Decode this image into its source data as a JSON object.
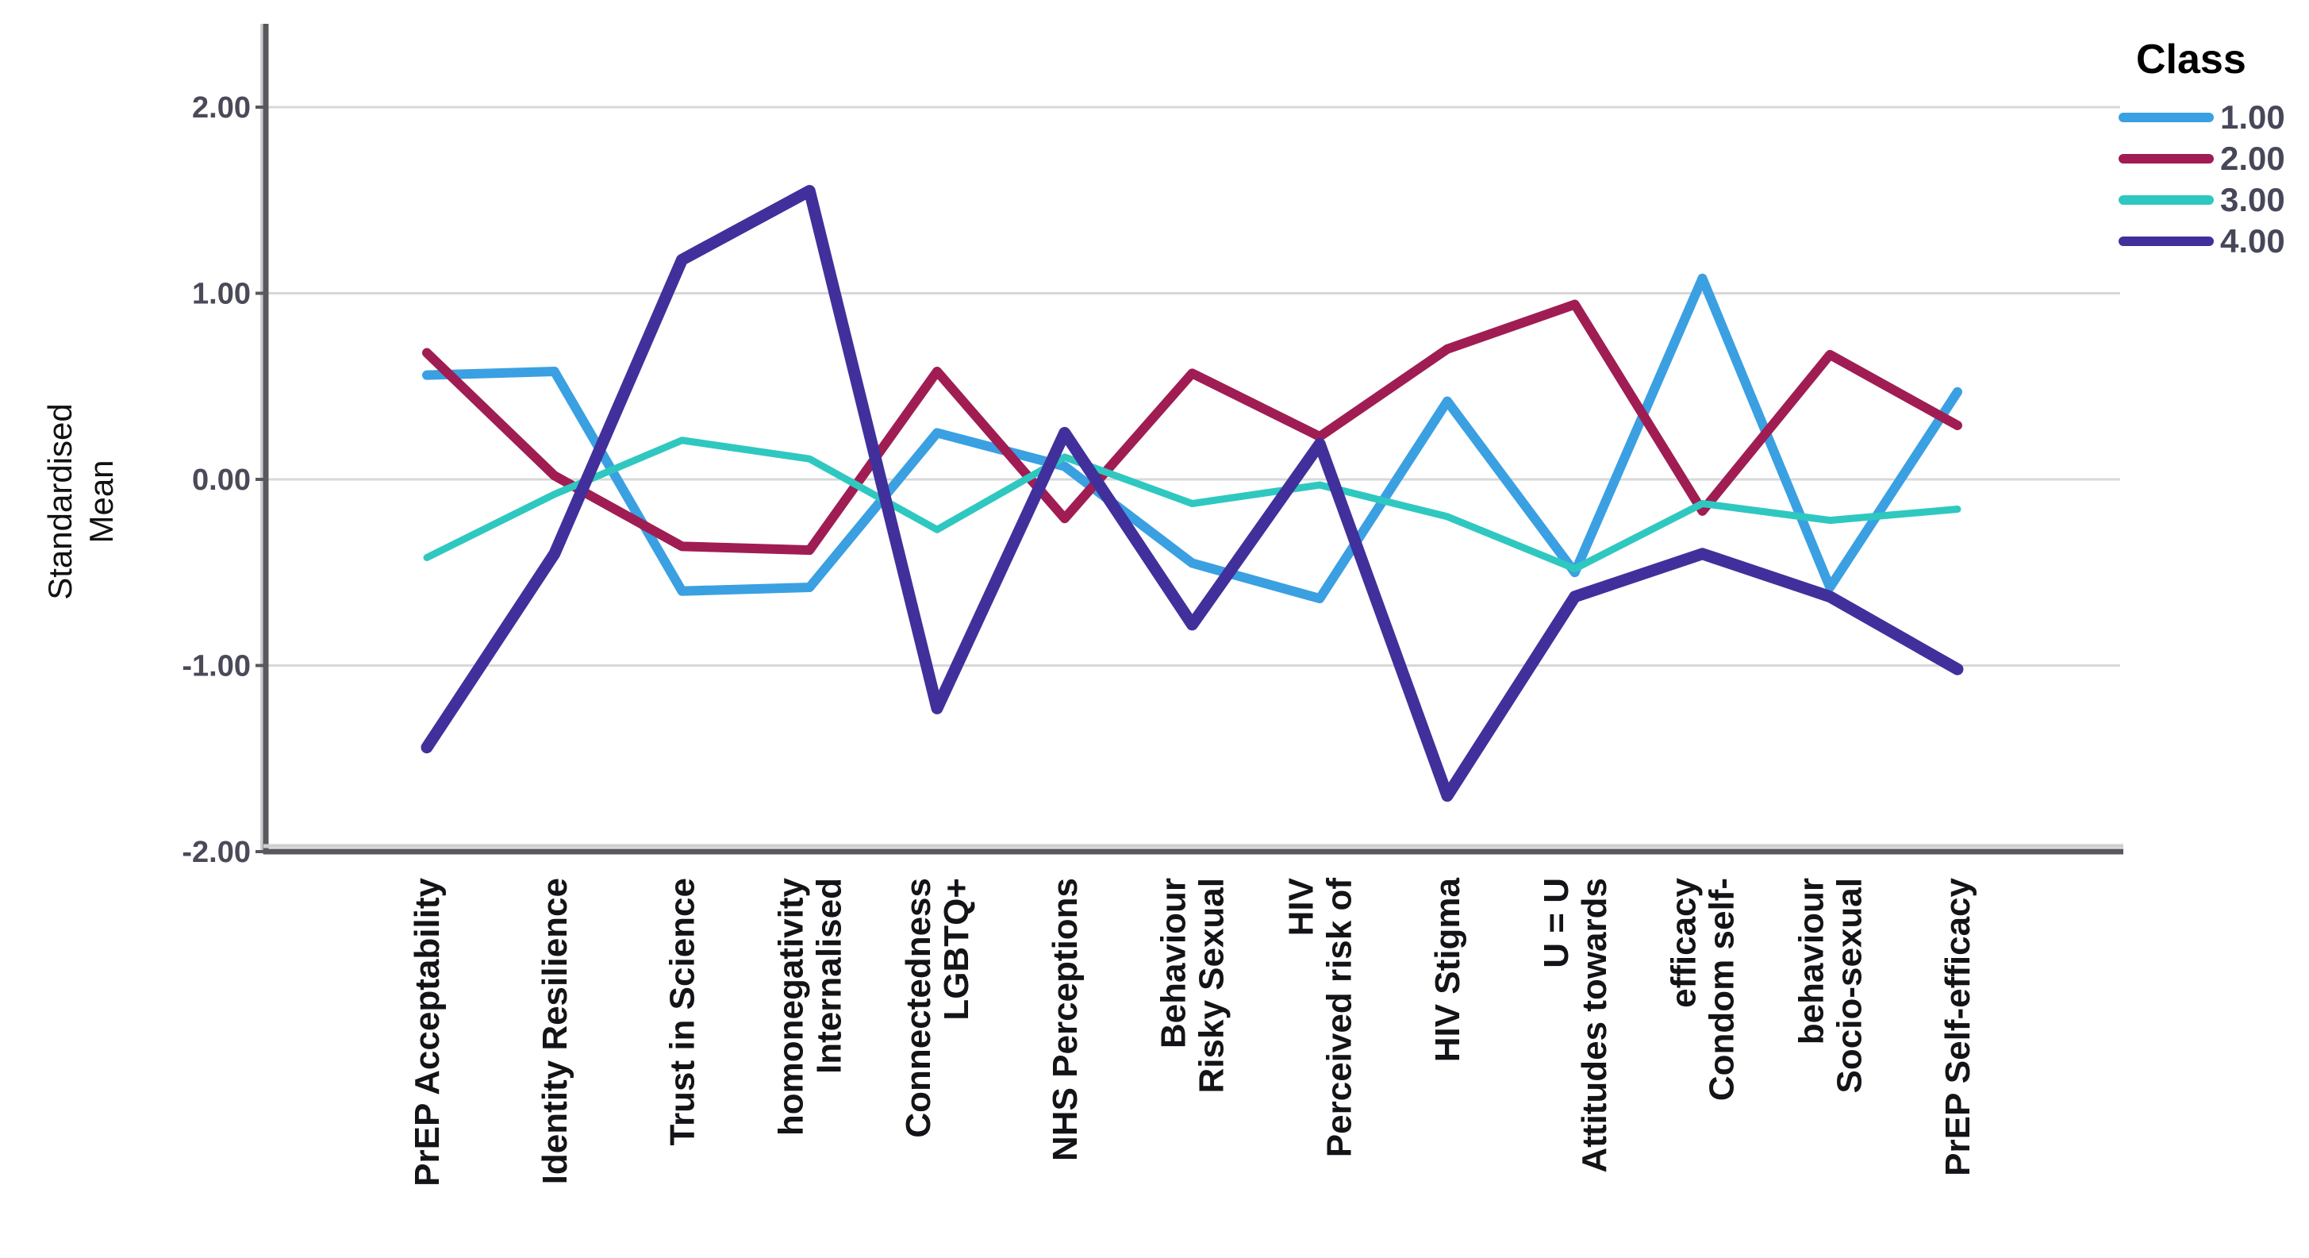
{
  "chart_data": {
    "type": "line",
    "title": "",
    "ylabel": "Standardised Mean",
    "ylabel_lines": [
      "Standardised",
      "Mean"
    ],
    "xlabel": "",
    "legend_title": "Class",
    "legend_position": "top-right",
    "grid": "horizontal",
    "ylim": [
      -2.0,
      2.45
    ],
    "y_ticks": [
      {
        "label": "2.00",
        "value": 2
      },
      {
        "label": "1.00",
        "value": 1
      },
      {
        "label": "0.00",
        "value": 0
      },
      {
        "label": "-1.00",
        "value": -1
      },
      {
        "label": "-2.00",
        "value": -2
      }
    ],
    "categories": [
      {
        "label": "PrEP Acceptability",
        "lines": [
          "PrEP Acceptability"
        ]
      },
      {
        "label": "Identity Resilience",
        "lines": [
          "Identity Resilience"
        ]
      },
      {
        "label": "Trust in Science",
        "lines": [
          "Trust in Science"
        ]
      },
      {
        "label": "Internalised homonegativity",
        "lines": [
          "Internalised",
          "homonegativity"
        ]
      },
      {
        "label": "LGBTQ+ Connectedness",
        "lines": [
          "LGBTQ+",
          "Connectedness"
        ]
      },
      {
        "label": "NHS Perceptions",
        "lines": [
          "NHS Perceptions"
        ]
      },
      {
        "label": "Risky Sexual Behaviour",
        "lines": [
          "Risky Sexual",
          "Behaviour"
        ]
      },
      {
        "label": "Perceived risk of HIV",
        "lines": [
          "Perceived risk of",
          "HIV"
        ]
      },
      {
        "label": "HIV Stigma",
        "lines": [
          "HIV Stigma"
        ]
      },
      {
        "label": "Attitudes towards U = U",
        "lines": [
          "Attitudes towards",
          "U = U"
        ]
      },
      {
        "label": "Condom self-efficacy",
        "lines": [
          "Condom self-",
          "efficacy"
        ]
      },
      {
        "label": "Socio-sexual behaviour",
        "lines": [
          "Socio-sexual",
          "behaviour"
        ]
      },
      {
        "label": "PrEP Self-efficacy",
        "lines": [
          "PrEP Self-efficacy"
        ]
      }
    ],
    "series": [
      {
        "name": "1.00",
        "color": "#3AA0E2",
        "stroke_width": 12,
        "values": [
          0.56,
          0.58,
          -0.6,
          -0.58,
          0.25,
          0.07,
          -0.45,
          -0.64,
          0.42,
          -0.5,
          1.08,
          -0.58,
          0.47
        ]
      },
      {
        "name": "2.00",
        "color": "#A01D53",
        "stroke_width": 12,
        "values": [
          0.68,
          0.02,
          -0.36,
          -0.38,
          0.58,
          -0.21,
          0.57,
          0.23,
          0.7,
          0.94,
          -0.17,
          0.67,
          0.29
        ]
      },
      {
        "name": "3.00",
        "color": "#2FC8C0",
        "stroke_width": 9,
        "values": [
          -0.42,
          -0.08,
          0.21,
          0.11,
          -0.27,
          0.12,
          -0.13,
          -0.03,
          -0.2,
          -0.48,
          -0.13,
          -0.22,
          -0.16
        ]
      },
      {
        "name": "4.00",
        "color": "#41309B",
        "stroke_width": 15,
        "values": [
          -1.44,
          -0.4,
          1.18,
          1.55,
          -1.23,
          0.25,
          -0.78,
          0.19,
          -1.7,
          -0.63,
          -0.4,
          -0.63,
          -1.02
        ]
      }
    ]
  }
}
